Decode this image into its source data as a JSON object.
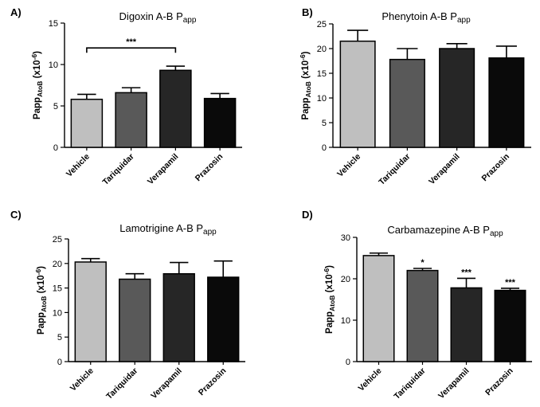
{
  "chart_data": [
    {
      "type": "bar",
      "panel_label": "A)",
      "title_main": "Digoxin A-B P",
      "title_sub": "app",
      "ylabel_main": "Papp",
      "ylabel_sub": "AtoB",
      "ylabel_unit_pre": " (x10",
      "ylabel_unit_exp": "-6",
      "ylabel_unit_post": ")",
      "categories": [
        "Vehicle",
        "Tariquidar",
        "Verapamil",
        "Prazosin"
      ],
      "values": [
        5.8,
        6.6,
        9.3,
        5.9
      ],
      "errors": [
        0.6,
        0.6,
        0.5,
        0.6
      ],
      "colors": [
        "#bfbfbf",
        "#595959",
        "#262626",
        "#0a0a0a"
      ],
      "ylim": [
        0,
        15
      ],
      "yticks": [
        "0",
        "5",
        "10",
        "15"
      ],
      "significance": [],
      "bracket": {
        "from": 0,
        "to": 2,
        "y": 12.0,
        "label": "***"
      }
    },
    {
      "type": "bar",
      "panel_label": "B)",
      "title_main": "Phenytoin A-B P",
      "title_sub": "app",
      "ylabel_main": "Papp",
      "ylabel_sub": "AtoB",
      "ylabel_unit_pre": " (x10",
      "ylabel_unit_exp": "-6",
      "ylabel_unit_post": ")",
      "categories": [
        "Vehicle",
        "Tariquidar",
        "Verapamil",
        "Prazosin"
      ],
      "values": [
        21.5,
        17.8,
        20.0,
        18.1
      ],
      "errors": [
        2.2,
        2.2,
        1.0,
        2.4
      ],
      "colors": [
        "#bfbfbf",
        "#595959",
        "#262626",
        "#0a0a0a"
      ],
      "ylim": [
        0,
        25
      ],
      "yticks": [
        "0",
        "5",
        "10",
        "15",
        "20",
        "25"
      ],
      "significance": []
    },
    {
      "type": "bar",
      "panel_label": "C)",
      "title_main": "Lamotrigine A-B P",
      "title_sub": "app",
      "ylabel_main": "Papp",
      "ylabel_sub": "AtoB",
      "ylabel_unit_pre": " (x10",
      "ylabel_unit_exp": "-6",
      "ylabel_unit_post": ")",
      "categories": [
        "Vehicle",
        "Tariquidar",
        "Verapamil",
        "Prazosin"
      ],
      "values": [
        20.3,
        16.8,
        17.9,
        17.2
      ],
      "errors": [
        0.7,
        1.1,
        2.3,
        3.3
      ],
      "colors": [
        "#bfbfbf",
        "#595959",
        "#262626",
        "#0a0a0a"
      ],
      "ylim": [
        0,
        25
      ],
      "yticks": [
        "0",
        "5",
        "10",
        "15",
        "20",
        "25"
      ],
      "significance": []
    },
    {
      "type": "bar",
      "panel_label": "D)",
      "title_main": "Carbamazepine A-B P",
      "title_sub": "app",
      "ylabel_main": "Papp",
      "ylabel_sub": "AtoB",
      "ylabel_unit_pre": " (x10",
      "ylabel_unit_exp": "-6",
      "ylabel_unit_post": ")",
      "categories": [
        "Vehicle",
        "Tariquidar",
        "Verapamil",
        "Prazosin"
      ],
      "values": [
        25.6,
        22.0,
        17.8,
        17.2
      ],
      "errors": [
        0.6,
        0.5,
        2.3,
        0.5
      ],
      "colors": [
        "#bfbfbf",
        "#595959",
        "#262626",
        "#0a0a0a"
      ],
      "ylim": [
        0,
        30
      ],
      "yticks": [
        "0",
        "10",
        "20",
        "30"
      ],
      "significance": [
        "",
        "*",
        "***",
        "***"
      ]
    }
  ]
}
